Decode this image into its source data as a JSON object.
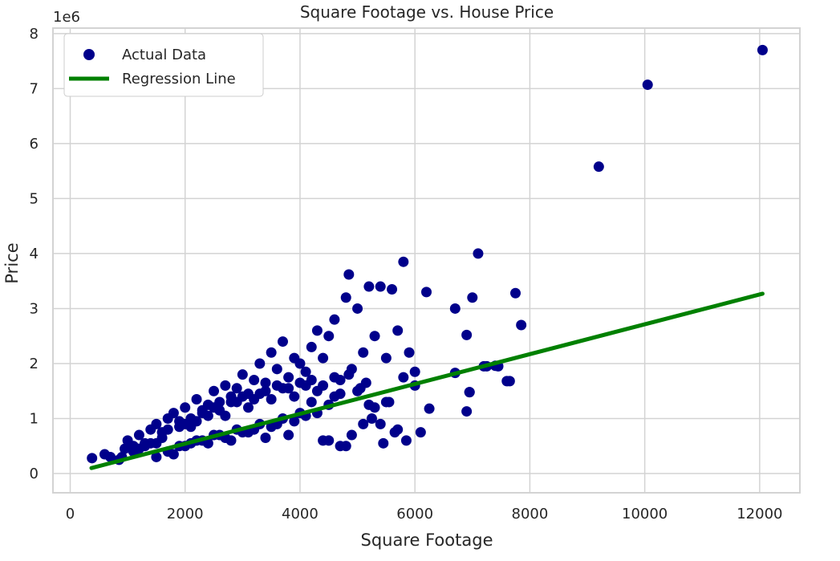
{
  "chart_data": {
    "type": "scatter",
    "title": "Square Footage vs. House Price",
    "xlabel": "Square Footage",
    "ylabel": "Price",
    "y_offset_label": "1e6",
    "xlim": [
      -300,
      12700
    ],
    "ylim": [
      -0.35,
      8.1
    ],
    "y_scale_factor": 1000000,
    "xticks": [
      0,
      2000,
      4000,
      6000,
      8000,
      10000,
      12000
    ],
    "xtick_labels": [
      "0",
      "2000",
      "4000",
      "6000",
      "8000",
      "10000",
      "12000"
    ],
    "yticks": [
      0,
      1,
      2,
      3,
      4,
      5,
      6,
      7,
      8
    ],
    "ytick_labels": [
      "0",
      "1",
      "2",
      "3",
      "4",
      "5",
      "6",
      "7",
      "8"
    ],
    "grid": true,
    "legend_position": "top-left",
    "colors": {
      "scatter": "#00008b",
      "line": "#008000",
      "grid": "#d3d3d3",
      "background": "#ffffff"
    },
    "series": [
      {
        "name": "Actual Data",
        "kind": "scatter",
        "x": [
          380,
          600,
          700,
          850,
          950,
          1000,
          1100,
          1200,
          1300,
          1400,
          1500,
          1600,
          1700,
          1800,
          1900,
          2000,
          2100,
          2200,
          2300,
          2400,
          2500,
          2600,
          2700,
          2800,
          2900,
          3000,
          3100,
          3200,
          3300,
          3400,
          3500,
          3600,
          3700,
          3800,
          3900,
          4000,
          4100,
          4200,
          4300,
          4400,
          4500,
          4600,
          4700,
          4800,
          4900,
          5000,
          5100,
          5200,
          5300,
          5400,
          5500,
          5600,
          5700,
          5800,
          5900,
          6000,
          6200,
          6700,
          6900,
          6950,
          7000,
          7100,
          7200,
          7400,
          7600,
          7750,
          7850,
          9200,
          10050,
          12050,
          1500,
          1700,
          1900,
          2100,
          2300,
          2500,
          2700,
          2900,
          3100,
          3300,
          3500,
          3700,
          3900,
          4100,
          4300,
          4500,
          4700,
          4900,
          5100,
          5300,
          5500,
          5700,
          1200,
          1400,
          1600,
          1800,
          2000,
          2200,
          2400,
          2600,
          2800,
          3000,
          3200,
          3400,
          3600,
          3800,
          4000,
          4200,
          4400,
          4600,
          4800,
          5000,
          5200,
          5400,
          900,
          1100,
          1300,
          1500,
          1700,
          1900,
          2100,
          2300,
          2500,
          2700,
          2900,
          3100,
          3300,
          3500,
          3700,
          3900,
          4100,
          4300,
          4500,
          4700,
          2000,
          2200,
          2400,
          2600,
          2800,
          3000,
          3200,
          3400,
          3600,
          3800,
          4000,
          4200,
          4400,
          4600,
          4850,
          5050,
          5250,
          5450,
          5650,
          5850,
          4850,
          5150,
          5550,
          5800,
          6000,
          6100,
          6250,
          6700,
          6900,
          6950,
          7250,
          7450,
          7650
        ],
        "y": [
          0.28,
          0.35,
          0.3,
          0.25,
          0.45,
          0.6,
          0.5,
          0.7,
          0.55,
          0.8,
          0.9,
          0.75,
          1.0,
          1.1,
          0.85,
          1.2,
          1.0,
          1.35,
          1.15,
          1.25,
          1.5,
          1.3,
          1.6,
          1.4,
          1.55,
          1.8,
          1.45,
          1.7,
          2.0,
          1.65,
          2.2,
          1.9,
          2.4,
          1.75,
          2.1,
          2.0,
          1.85,
          2.3,
          2.6,
          2.1,
          2.5,
          2.8,
          1.7,
          3.2,
          1.9,
          3.0,
          2.2,
          3.4,
          2.5,
          3.4,
          2.1,
          3.35,
          2.6,
          3.85,
          2.2,
          1.85,
          3.3,
          3.0,
          2.52,
          1.48,
          3.2,
          4.0,
          1.95,
          1.96,
          1.68,
          3.28,
          2.7,
          5.58,
          7.07,
          7.7,
          0.3,
          0.4,
          0.5,
          0.55,
          0.6,
          0.7,
          0.65,
          0.8,
          0.75,
          0.9,
          0.85,
          1.0,
          0.95,
          1.05,
          1.1,
          0.6,
          0.5,
          0.7,
          0.9,
          1.2,
          1.3,
          0.8,
          0.45,
          0.55,
          0.65,
          0.35,
          0.5,
          0.6,
          0.55,
          0.7,
          0.6,
          0.75,
          0.8,
          0.65,
          0.9,
          0.7,
          1.1,
          1.3,
          0.6,
          1.4,
          0.5,
          1.5,
          1.25,
          0.9,
          0.3,
          0.4,
          0.5,
          0.55,
          0.8,
          0.95,
          0.85,
          1.1,
          1.2,
          1.05,
          1.3,
          1.2,
          1.45,
          1.35,
          1.55,
          1.4,
          1.6,
          1.5,
          1.25,
          1.45,
          0.9,
          0.95,
          1.05,
          1.15,
          1.3,
          1.4,
          1.35,
          1.5,
          1.6,
          1.55,
          1.65,
          1.7,
          1.6,
          1.75,
          1.8,
          1.55,
          1.0,
          0.55,
          0.75,
          0.6,
          3.62,
          1.65,
          1.3,
          1.75,
          1.6,
          0.75,
          1.18,
          1.83,
          1.13,
          1.48,
          1.95,
          1.95,
          1.68
        ]
      },
      {
        "name": "Regression Line",
        "kind": "line",
        "x": [
          370,
          12050
        ],
        "y": [
          0.1,
          3.27
        ]
      }
    ]
  }
}
